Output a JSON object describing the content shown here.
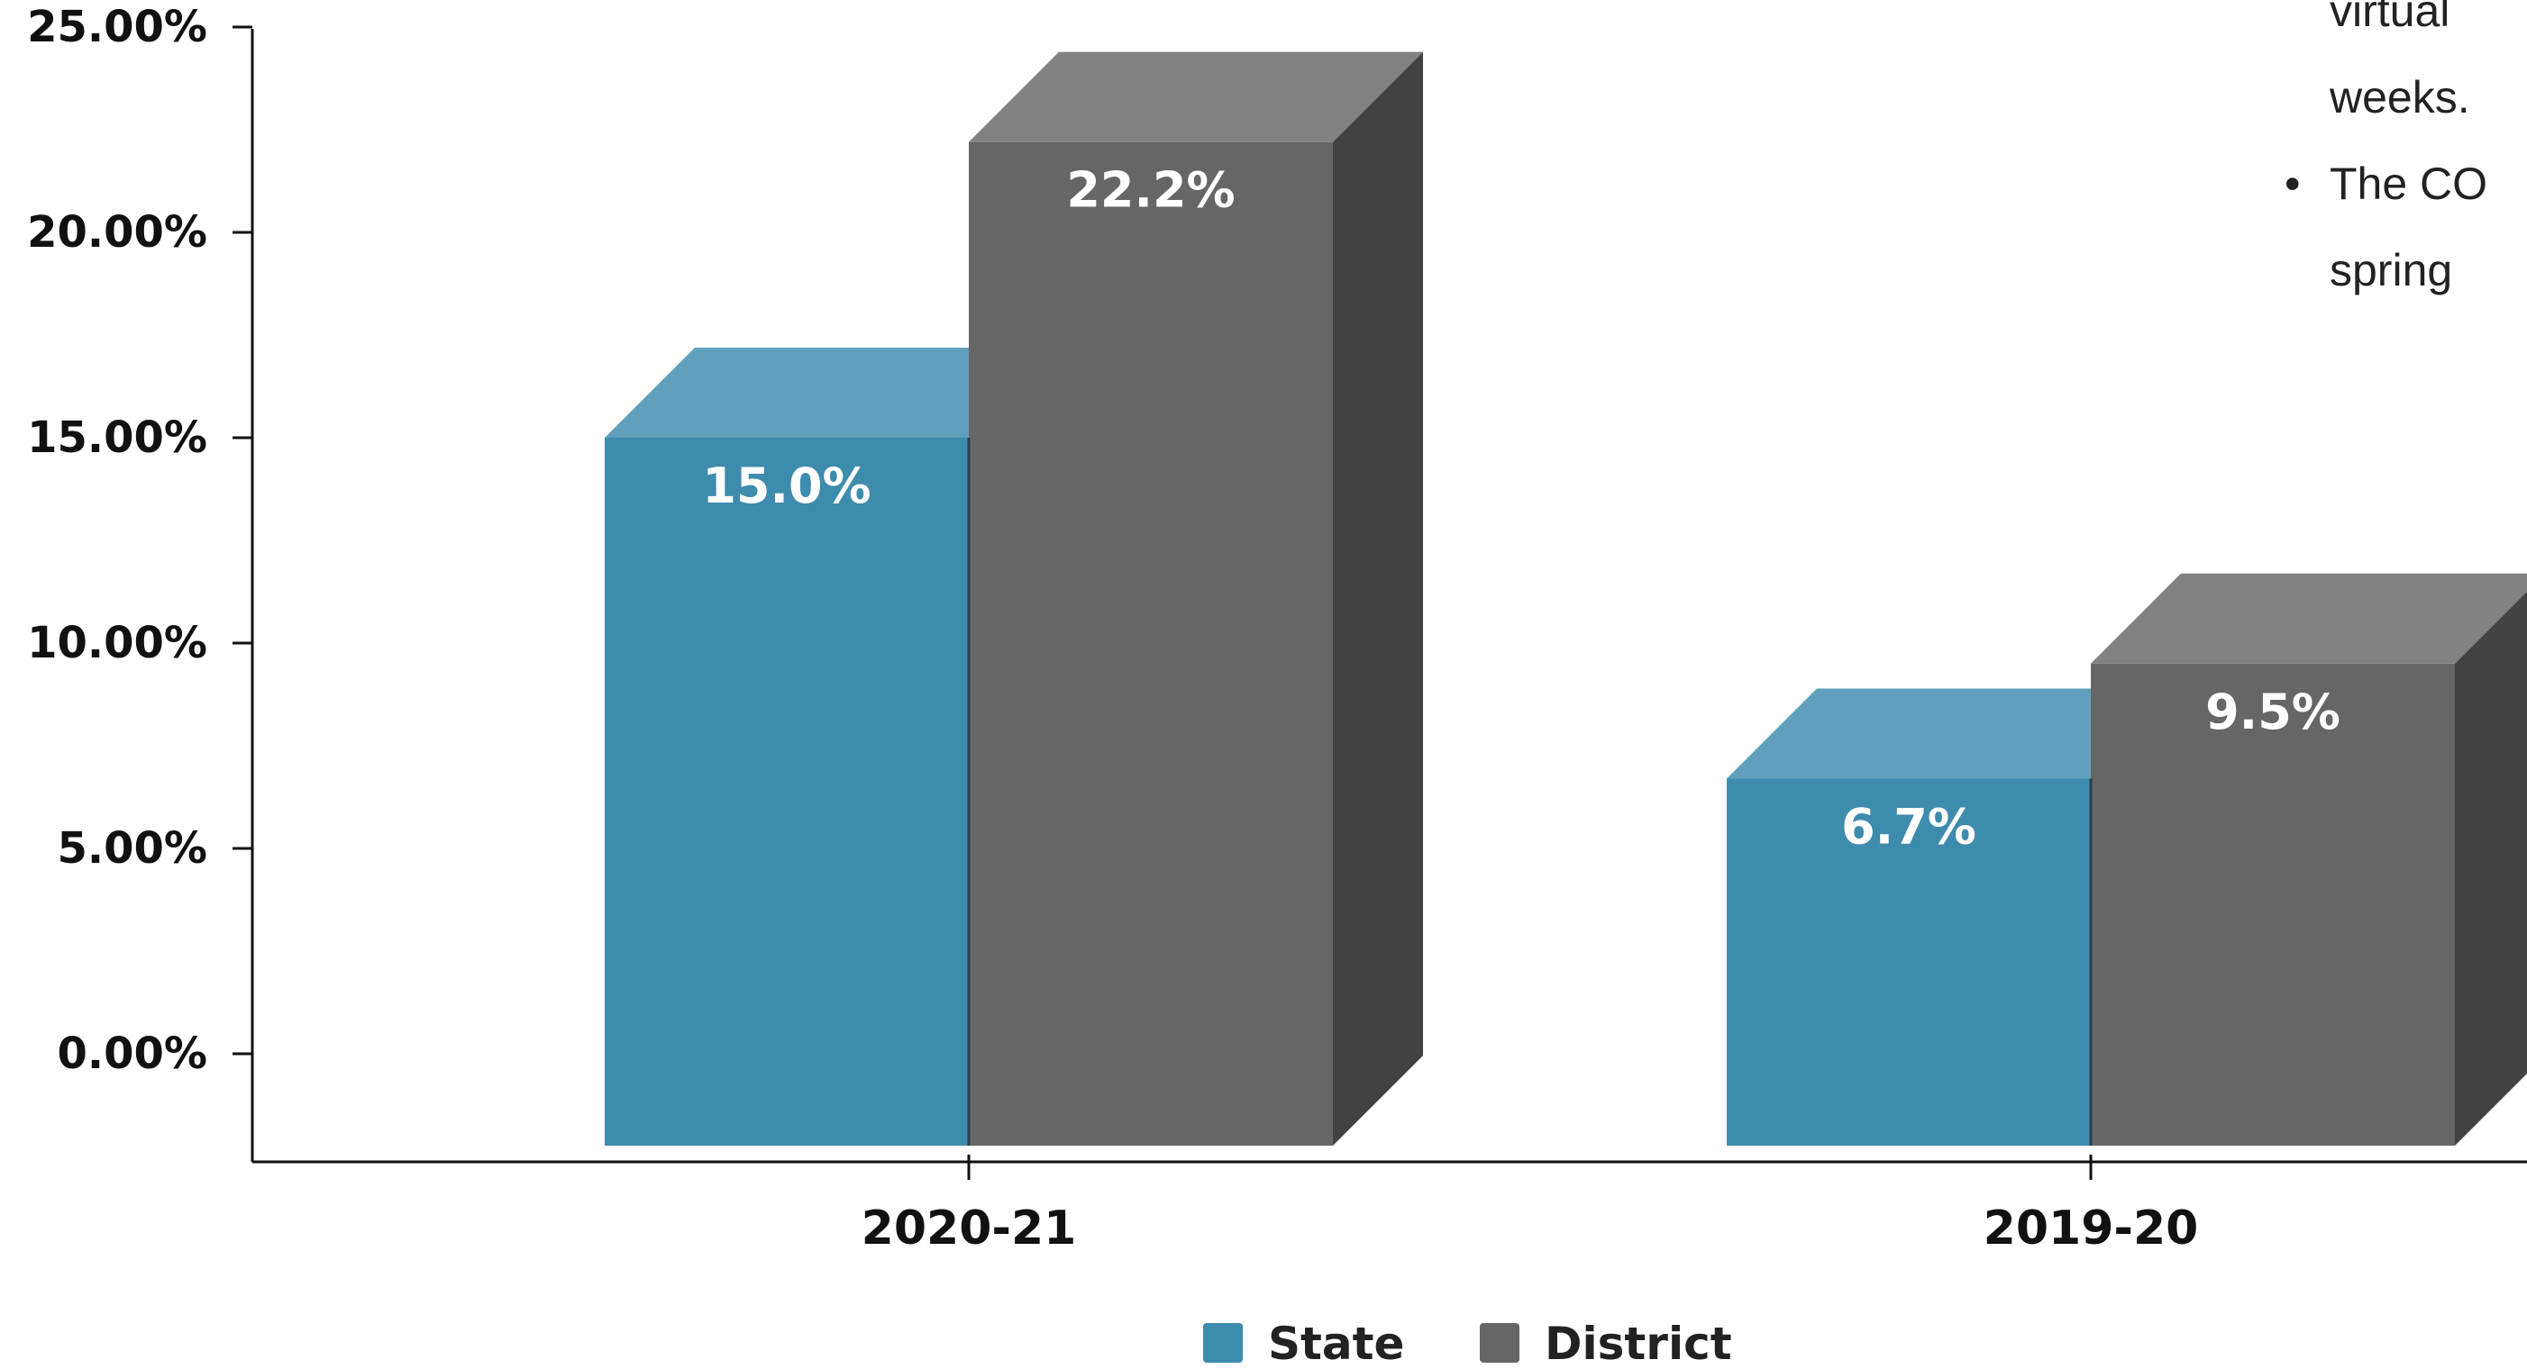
{
  "chart_data": {
    "type": "bar",
    "style": "3d",
    "categories": [
      "2020-21",
      "2019-20"
    ],
    "series": [
      {
        "name": "State",
        "values": [
          15.0,
          6.7
        ],
        "labels": [
          "15.0%",
          "6.7%"
        ],
        "color": "#3d8bad"
      },
      {
        "name": "District",
        "values": [
          22.2,
          9.5
        ],
        "labels": [
          "22.2%",
          "9.5%"
        ],
        "color": "#666666"
      }
    ],
    "yticks": [
      "25.00%",
      "20.00%",
      "15.00%",
      "10.00%",
      "5.00%",
      "0.00%"
    ],
    "ytick_values": [
      25,
      20,
      15,
      10,
      5,
      0
    ],
    "ylim": [
      -2.5,
      25
    ],
    "legend_position": "bottom-center",
    "grid": false
  },
  "notes": [
    {
      "text": "virtual",
      "bullet": false
    },
    {
      "text": "weeks.",
      "bullet": false
    },
    {
      "text": "The CO",
      "bullet": true
    },
    {
      "text": "spring",
      "bullet": false
    }
  ]
}
